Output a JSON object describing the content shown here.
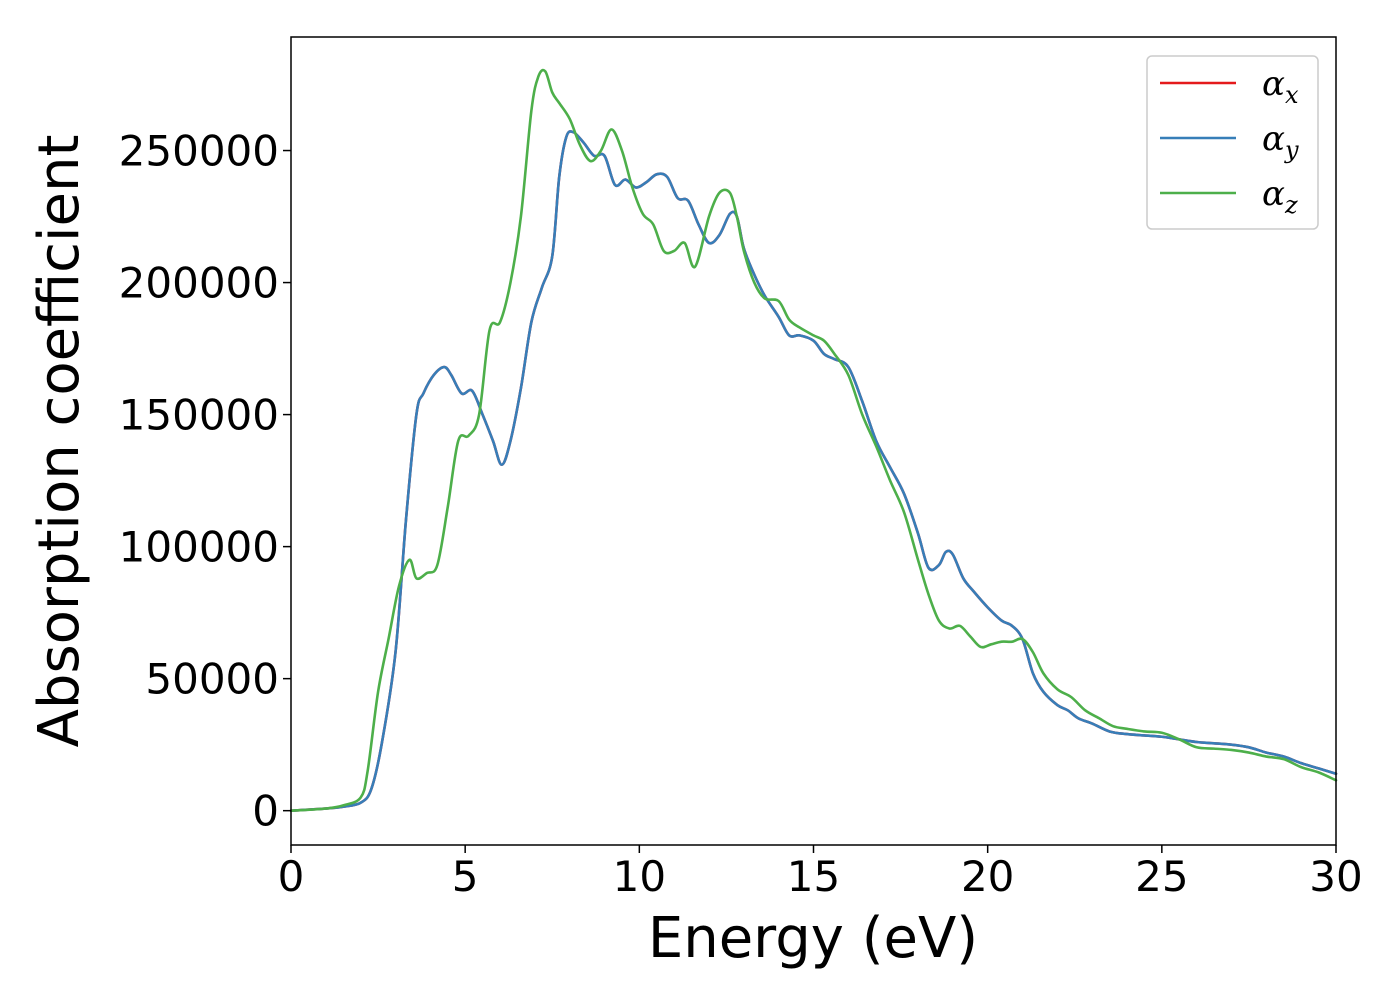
{
  "chart_data": {
    "type": "line",
    "title": "",
    "xlabel": "Energy (eV)",
    "ylabel": "Absorption coefficient",
    "xlim": [
      0,
      30
    ],
    "ylim": [
      -13000,
      293000
    ],
    "xticks": [
      0,
      5,
      10,
      15,
      20,
      25,
      30
    ],
    "xtick_labels": [
      "0",
      "5",
      "10",
      "15",
      "20",
      "25",
      "30"
    ],
    "yticks": [
      0,
      50000,
      100000,
      150000,
      200000,
      250000
    ],
    "ytick_labels": [
      "0",
      "50000",
      "100000",
      "150000",
      "200000",
      "250000"
    ],
    "grid": false,
    "legend_position": "top-right",
    "series": [
      {
        "name": "α_x",
        "label_main": "α",
        "label_sub": "x",
        "color": "#e41a1c",
        "x": [
          0,
          1,
          1.5,
          2,
          2.3,
          2.6,
          3,
          3.3,
          3.6,
          3.8,
          4.1,
          4.4,
          4.6,
          4.9,
          5.2,
          5.5,
          5.8,
          6.05,
          6.3,
          6.6,
          6.9,
          7.2,
          7.5,
          7.7,
          7.9,
          8.1,
          8.4,
          8.7,
          9,
          9.3,
          9.6,
          9.9,
          10.2,
          10.5,
          10.8,
          11.1,
          11.4,
          11.7,
          12,
          12.3,
          12.6,
          12.8,
          13,
          13.3,
          13.6,
          14,
          14.3,
          14.6,
          15,
          15.3,
          15.6,
          16,
          16.4,
          16.8,
          17.2,
          17.6,
          18,
          18.3,
          18.6,
          18.8,
          19,
          19.3,
          19.6,
          20,
          20.4,
          20.7,
          21,
          21.3,
          21.6,
          22,
          22.3,
          22.6,
          23,
          23.5,
          24,
          24.5,
          25,
          25.5,
          26,
          26.5,
          27,
          27.5,
          28,
          28.5,
          29,
          29.5,
          30
        ],
        "values": [
          0,
          800,
          1500,
          3000,
          8000,
          25000,
          60000,
          110000,
          150000,
          158000,
          165000,
          168000,
          165000,
          158000,
          159000,
          150000,
          140000,
          131000,
          140000,
          160000,
          185000,
          198000,
          210000,
          240000,
          255000,
          257000,
          253000,
          248000,
          248000,
          237000,
          239000,
          236000,
          238000,
          241000,
          240000,
          232000,
          231000,
          222000,
          215000,
          218000,
          226000,
          225000,
          213000,
          203000,
          195000,
          187000,
          180000,
          180000,
          178000,
          173000,
          171000,
          168000,
          155000,
          140000,
          130000,
          120000,
          105000,
          92000,
          93000,
          98000,
          97000,
          88000,
          83000,
          77000,
          72000,
          70000,
          65000,
          52000,
          45000,
          40000,
          38000,
          35000,
          33000,
          30000,
          29000,
          28500,
          28000,
          27000,
          26000,
          25500,
          25000,
          24000,
          22000,
          20500,
          18000,
          16000,
          14000
        ]
      },
      {
        "name": "α_y",
        "label_main": "α",
        "label_sub": "y",
        "color": "#377eb8",
        "x": [
          0,
          1,
          1.5,
          2,
          2.3,
          2.6,
          3,
          3.3,
          3.6,
          3.8,
          4.1,
          4.4,
          4.6,
          4.9,
          5.2,
          5.5,
          5.8,
          6.05,
          6.3,
          6.6,
          6.9,
          7.2,
          7.5,
          7.7,
          7.9,
          8.1,
          8.4,
          8.7,
          9,
          9.3,
          9.6,
          9.9,
          10.2,
          10.5,
          10.8,
          11.1,
          11.4,
          11.7,
          12,
          12.3,
          12.6,
          12.8,
          13,
          13.3,
          13.6,
          14,
          14.3,
          14.6,
          15,
          15.3,
          15.6,
          16,
          16.4,
          16.8,
          17.2,
          17.6,
          18,
          18.3,
          18.6,
          18.8,
          19,
          19.3,
          19.6,
          20,
          20.4,
          20.7,
          21,
          21.3,
          21.6,
          22,
          22.3,
          22.6,
          23,
          23.5,
          24,
          24.5,
          25,
          25.5,
          26,
          26.5,
          27,
          27.5,
          28,
          28.5,
          29,
          29.5,
          30
        ],
        "values": [
          0,
          800,
          1500,
          3000,
          8000,
          25000,
          60000,
          110000,
          150000,
          158000,
          165000,
          168000,
          165000,
          158000,
          159000,
          150000,
          140000,
          131000,
          140000,
          160000,
          185000,
          198000,
          210000,
          240000,
          255000,
          257000,
          253000,
          248000,
          248000,
          237000,
          239000,
          236000,
          238000,
          241000,
          240000,
          232000,
          231000,
          222000,
          215000,
          218000,
          226000,
          225000,
          213000,
          203000,
          195000,
          187000,
          180000,
          180000,
          178000,
          173000,
          171000,
          168000,
          155000,
          140000,
          130000,
          120000,
          105000,
          92000,
          93000,
          98000,
          97000,
          88000,
          83000,
          77000,
          72000,
          70000,
          65000,
          52000,
          45000,
          40000,
          38000,
          35000,
          33000,
          30000,
          29000,
          28500,
          28000,
          27000,
          26000,
          25500,
          25000,
          24000,
          22000,
          20500,
          18000,
          16000,
          14000
        ]
      },
      {
        "name": "α_z",
        "label_main": "α",
        "label_sub": "z",
        "color": "#4daf4a",
        "x": [
          0,
          1,
          1.5,
          2,
          2.2,
          2.5,
          2.8,
          3.1,
          3.4,
          3.6,
          3.9,
          4.2,
          4.5,
          4.8,
          5.1,
          5.4,
          5.7,
          6,
          6.3,
          6.6,
          6.9,
          7.1,
          7.3,
          7.5,
          7.7,
          8,
          8.3,
          8.6,
          8.9,
          9.2,
          9.5,
          9.8,
          10.1,
          10.4,
          10.7,
          11,
          11.3,
          11.6,
          12,
          12.3,
          12.6,
          12.8,
          13,
          13.3,
          13.6,
          14,
          14.3,
          14.6,
          15,
          15.3,
          15.6,
          16,
          16.4,
          16.8,
          17.2,
          17.6,
          18,
          18.3,
          18.6,
          18.9,
          19.2,
          19.5,
          19.8,
          20.1,
          20.4,
          20.7,
          21,
          21.3,
          21.6,
          22,
          22.4,
          22.8,
          23.2,
          23.6,
          24,
          24.5,
          25,
          25.5,
          26,
          26.5,
          27,
          27.5,
          28,
          28.5,
          29,
          29.5,
          30
        ],
        "values": [
          0,
          800,
          2000,
          5000,
          15000,
          45000,
          65000,
          85000,
          95000,
          88000,
          90000,
          93000,
          115000,
          140000,
          142000,
          150000,
          182000,
          185000,
          200000,
          225000,
          265000,
          278000,
          280000,
          272000,
          268000,
          262000,
          252000,
          246000,
          250000,
          258000,
          250000,
          236000,
          226000,
          222000,
          212000,
          212000,
          215000,
          206000,
          225000,
          234000,
          234000,
          225000,
          212000,
          200000,
          194000,
          193000,
          186000,
          183000,
          180000,
          178000,
          173000,
          165000,
          150000,
          138000,
          125000,
          113000,
          95000,
          82000,
          72000,
          69000,
          70000,
          66000,
          62000,
          63000,
          64000,
          64000,
          65000,
          60000,
          52000,
          46000,
          43000,
          38000,
          35000,
          32000,
          31000,
          30000,
          29500,
          27000,
          24000,
          23500,
          23000,
          22000,
          20500,
          19500,
          16500,
          14500,
          11500
        ]
      }
    ]
  }
}
